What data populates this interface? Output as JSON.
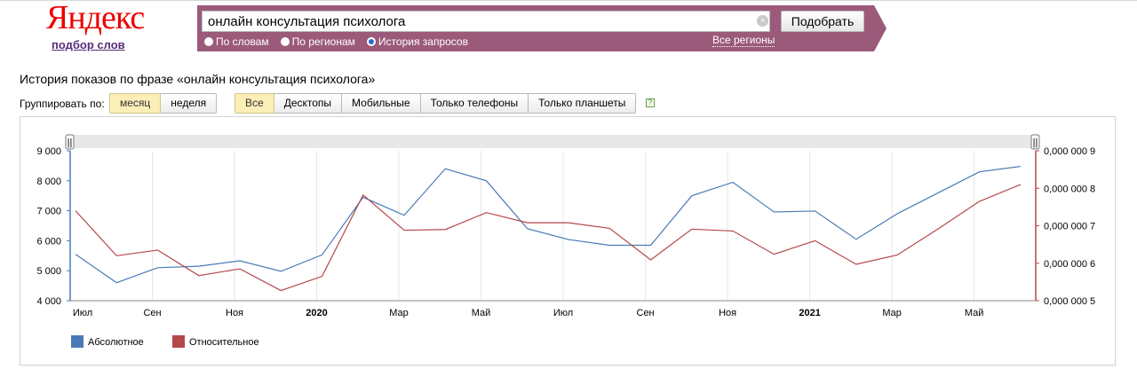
{
  "logo": {
    "text": "Яндекс",
    "subtitle": "подбор слов"
  },
  "search": {
    "value": "онлайн консультация психолога",
    "submit_label": "Подобрать",
    "clear_icon": "clear-icon",
    "options": [
      {
        "label": "По словам",
        "selected": false
      },
      {
        "label": "По регионам",
        "selected": false
      },
      {
        "label": "История запросов",
        "selected": true
      }
    ],
    "regions_link": "Все регионы"
  },
  "page_title": "История показов по фразе «онлайн консультация психолога»",
  "grouping": {
    "label": "Группировать по:",
    "options": [
      {
        "label": "месяц",
        "active": true
      },
      {
        "label": "неделя",
        "active": false
      }
    ]
  },
  "devices": {
    "options": [
      {
        "label": "Все",
        "active": true
      },
      {
        "label": "Десктопы",
        "active": false
      },
      {
        "label": "Мобильные",
        "active": false
      },
      {
        "label": "Только телефоны",
        "active": false
      },
      {
        "label": "Только планшеты",
        "active": false
      }
    ],
    "help_icon": "?"
  },
  "colors": {
    "accent": "#9b5a79",
    "absolute": "#4a7ab5",
    "relative": "#b5474a",
    "active_button": "#fbeeb7"
  },
  "chart_data": {
    "type": "line",
    "x_labels": [
      "Июл",
      "Сен",
      "Ноя",
      "2020",
      "Мар",
      "Май",
      "Июл",
      "Сен",
      "Ноя",
      "2021",
      "Мар",
      "Май"
    ],
    "x_labels_bold": [
      "2020",
      "2021"
    ],
    "x": [
      "2019-07",
      "2019-08",
      "2019-09",
      "2019-10",
      "2019-11",
      "2019-12",
      "2020-01",
      "2020-02",
      "2020-03",
      "2020-04",
      "2020-05",
      "2020-06",
      "2020-07",
      "2020-08",
      "2020-09",
      "2020-10",
      "2020-11",
      "2020-12",
      "2021-01",
      "2021-02",
      "2021-03",
      "2021-04",
      "2021-05",
      "2021-06"
    ],
    "y_left_ticks": [
      "9 000",
      "8 000",
      "7 000",
      "6 000",
      "5 000",
      "4 000"
    ],
    "y_right_ticks": [
      "0,000 000 9",
      "0,000 000 8",
      "0,000 000 7",
      "0,000 000 6",
      "0,000 000 5"
    ],
    "ylim_left": [
      4000,
      9000
    ],
    "ylim_right": [
      5e-07,
      9e-07
    ],
    "series": [
      {
        "name": "Абсолютное",
        "axis": "left",
        "values": [
          5550,
          4600,
          5100,
          5150,
          5330,
          4980,
          5530,
          7450,
          6850,
          8400,
          8000,
          6400,
          6040,
          5850,
          5850,
          7500,
          7950,
          6960,
          6990,
          6050,
          6900,
          7600,
          8300,
          8480
        ]
      },
      {
        "name": "Относительное",
        "axis": "right",
        "values": [
          7.4e-07,
          6.2e-07,
          6.35e-07,
          5.67e-07,
          5.85e-07,
          5.27e-07,
          5.65e-07,
          7.82e-07,
          6.88e-07,
          6.9e-07,
          7.35e-07,
          7.08e-07,
          7.08e-07,
          6.93e-07,
          6.09e-07,
          6.91e-07,
          6.86e-07,
          6.24e-07,
          6.6e-07,
          5.97e-07,
          6.22e-07,
          6.92e-07,
          7.65e-07,
          8.1e-07
        ]
      }
    ],
    "grid": true,
    "legend": "bottom-left"
  }
}
